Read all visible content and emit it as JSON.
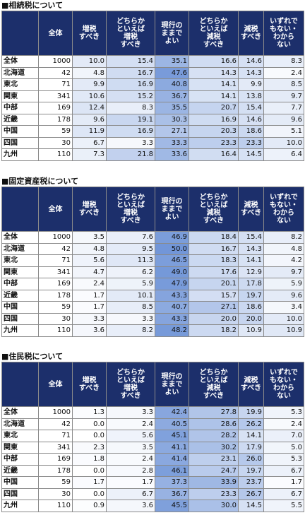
{
  "tables": [
    {
      "title": "■相続税について",
      "headers": [
        "全体",
        "増税\nすべき",
        "どちらか\nといえば\n増税\nすべき",
        "現行の\nままで\nよい",
        "どちらか\nといえば\n減税\nすべき",
        "減税\nすべき",
        "いずれで\nもない・\nわから\nない"
      ],
      "rows": [
        {
          "label": "全体",
          "values": [
            "1000",
            "10.0",
            "15.4",
            "35.1",
            "16.6",
            "14.6",
            "8.3"
          ]
        },
        {
          "label": "北海道",
          "values": [
            "42",
            "4.8",
            "16.7",
            "47.6",
            "14.3",
            "14.3",
            "2.4"
          ]
        },
        {
          "label": "東北",
          "values": [
            "71",
            "9.9",
            "16.9",
            "40.8",
            "14.1",
            "9.9",
            "8.5"
          ]
        },
        {
          "label": "関東",
          "values": [
            "341",
            "10.6",
            "15.2",
            "36.7",
            "14.1",
            "13.8",
            "9.7"
          ]
        },
        {
          "label": "中部",
          "values": [
            "169",
            "12.4",
            "8.3",
            "35.5",
            "20.7",
            "15.4",
            "7.7"
          ]
        },
        {
          "label": "近畿",
          "values": [
            "178",
            "9.6",
            "19.1",
            "30.3",
            "16.9",
            "14.6",
            "9.6"
          ]
        },
        {
          "label": "中国",
          "values": [
            "59",
            "11.9",
            "16.9",
            "27.1",
            "20.3",
            "18.6",
            "5.1"
          ]
        },
        {
          "label": "四国",
          "values": [
            "30",
            "6.7",
            "3.3",
            "33.3",
            "23.3",
            "23.3",
            "10.0"
          ]
        },
        {
          "label": "九州",
          "values": [
            "110",
            "7.3",
            "21.8",
            "33.6",
            "16.4",
            "14.5",
            "6.4"
          ]
        }
      ]
    },
    {
      "title": "■固定資産税について",
      "headers": [
        "全体",
        "増税\nすべき",
        "どちらか\nといえば\n増税\nすべき",
        "現行の\nままで\nよい",
        "どちらか\nといえば\n減税\nすべき",
        "減税\nすべき",
        "いずれで\nもない・\nわから\nない"
      ],
      "rows": [
        {
          "label": "全体",
          "values": [
            "1000",
            "3.5",
            "7.6",
            "46.9",
            "18.4",
            "15.4",
            "8.2"
          ]
        },
        {
          "label": "北海道",
          "values": [
            "42",
            "4.8",
            "9.5",
            "50.0",
            "16.7",
            "14.3",
            "4.8"
          ]
        },
        {
          "label": "東北",
          "values": [
            "71",
            "5.6",
            "11.3",
            "46.5",
            "18.3",
            "14.1",
            "4.2"
          ]
        },
        {
          "label": "関東",
          "values": [
            "341",
            "4.7",
            "6.2",
            "49.0",
            "17.6",
            "12.9",
            "9.7"
          ]
        },
        {
          "label": "中部",
          "values": [
            "169",
            "2.4",
            "5.9",
            "47.9",
            "20.1",
            "17.8",
            "5.9"
          ]
        },
        {
          "label": "近畿",
          "values": [
            "178",
            "1.7",
            "10.1",
            "43.3",
            "15.7",
            "19.7",
            "9.6"
          ]
        },
        {
          "label": "中国",
          "values": [
            "59",
            "1.7",
            "8.5",
            "40.7",
            "27.1",
            "18.6",
            "3.4"
          ]
        },
        {
          "label": "四国",
          "values": [
            "30",
            "3.3",
            "3.3",
            "43.3",
            "20.0",
            "20.0",
            "10.0"
          ]
        },
        {
          "label": "九州",
          "values": [
            "110",
            "3.6",
            "8.2",
            "48.2",
            "18.2",
            "10.9",
            "10.9"
          ]
        }
      ]
    },
    {
      "title": "■住民税について",
      "headers": [
        "全体",
        "増税\nすべき",
        "どちらか\nといえば\n増税\nすべき",
        "現行の\nままで\nよい",
        "どちらか\nといえば\n減税\nすべき",
        "減税\nすべき",
        "いずれで\nもない・\nわから\nない"
      ],
      "rows": [
        {
          "label": "全体",
          "values": [
            "1000",
            "1.3",
            "3.3",
            "42.4",
            "27.8",
            "19.9",
            "5.3"
          ]
        },
        {
          "label": "北海道",
          "values": [
            "42",
            "0.0",
            "2.4",
            "40.5",
            "28.6",
            "26.2",
            "2.4"
          ]
        },
        {
          "label": "東北",
          "values": [
            "71",
            "0.0",
            "5.6",
            "45.1",
            "28.2",
            "14.1",
            "7.0"
          ]
        },
        {
          "label": "関東",
          "values": [
            "341",
            "2.3",
            "3.5",
            "41.1",
            "30.2",
            "17.9",
            "5.0"
          ]
        },
        {
          "label": "中部",
          "values": [
            "169",
            "1.8",
            "2.4",
            "41.4",
            "23.1",
            "26.0",
            "5.3"
          ]
        },
        {
          "label": "近畿",
          "values": [
            "178",
            "0.0",
            "2.8",
            "46.1",
            "24.7",
            "19.7",
            "6.7"
          ]
        },
        {
          "label": "中国",
          "values": [
            "59",
            "1.7",
            "1.7",
            "37.3",
            "33.9",
            "23.7",
            "1.7"
          ]
        },
        {
          "label": "四国",
          "values": [
            "30",
            "0.0",
            "6.7",
            "36.7",
            "23.3",
            "26.7",
            "6.7"
          ]
        },
        {
          "label": "九州",
          "values": [
            "110",
            "0.9",
            "3.6",
            "45.5",
            "30.0",
            "14.5",
            "5.5"
          ]
        }
      ]
    }
  ]
}
